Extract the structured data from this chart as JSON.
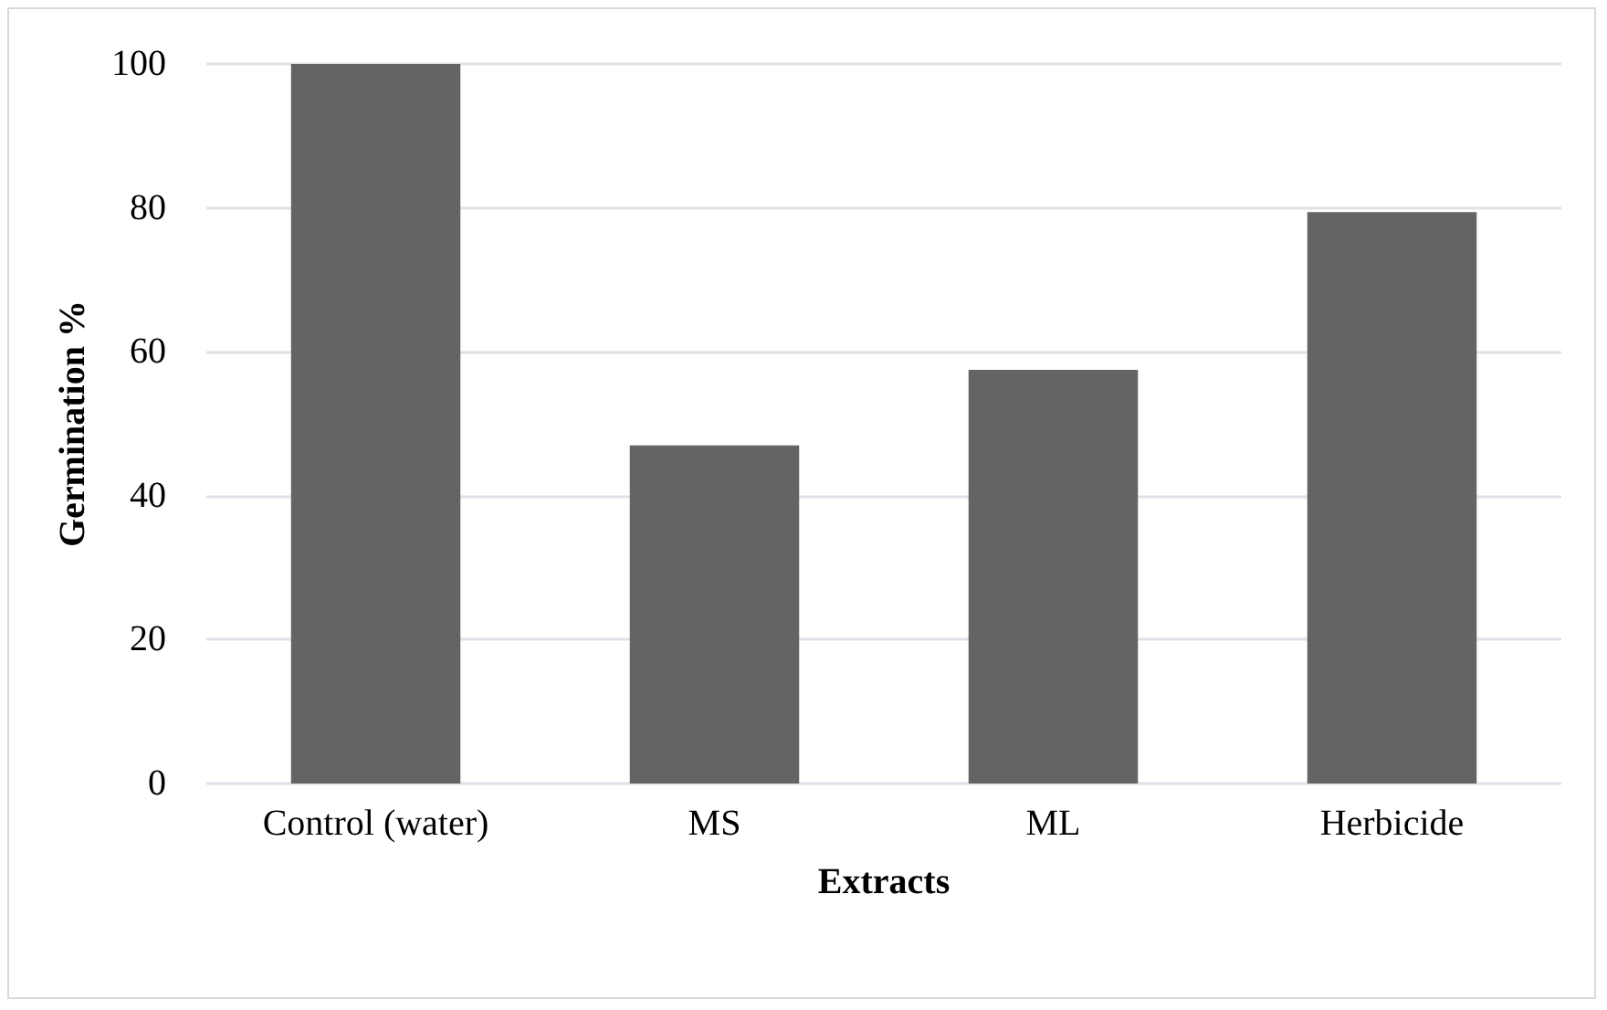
{
  "chart_data": {
    "type": "bar",
    "xlabel": "Extracts",
    "ylabel": "Germination %",
    "categories": [
      "Control (water)",
      "MS",
      "ML",
      "Herbicide"
    ],
    "values": [
      100,
      47,
      57.5,
      79.4
    ],
    "color": "#646464",
    "ylim": [
      0,
      100
    ],
    "yticks": [
      0,
      20,
      40,
      60,
      80,
      100
    ],
    "grid": "y"
  }
}
